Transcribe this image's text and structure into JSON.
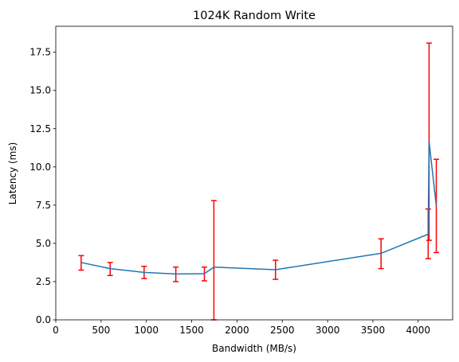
{
  "chart_data": {
    "type": "line",
    "title": "1024K  Random Write",
    "xlabel": "Bandwidth (MB/s)",
    "ylabel": "Latency (ms)",
    "xlim": [
      0,
      4380
    ],
    "ylim": [
      0,
      19.2
    ],
    "xticks": [
      0,
      500,
      1000,
      1500,
      2000,
      2500,
      3000,
      3500,
      4000
    ],
    "yticks": [
      0.0,
      2.5,
      5.0,
      7.5,
      10.0,
      12.5,
      15.0,
      17.5
    ],
    "xtick_labels": [
      "0",
      "500",
      "1000",
      "1500",
      "2000",
      "2500",
      "3000",
      "3500",
      "4000"
    ],
    "ytick_labels": [
      "0.0",
      "2.5",
      "5.0",
      "7.5",
      "10.0",
      "12.5",
      "15.0",
      "17.5"
    ],
    "grid": false,
    "line_color": "#1f77b4",
    "errorbar_color": "#ff0000",
    "series": [
      {
        "name": "latency",
        "points": [
          {
            "x": 280,
            "y": 3.75,
            "lo": 3.25,
            "hi": 4.2
          },
          {
            "x": 600,
            "y": 3.35,
            "lo": 2.9,
            "hi": 3.75
          },
          {
            "x": 975,
            "y": 3.1,
            "lo": 2.7,
            "hi": 3.5
          },
          {
            "x": 1325,
            "y": 3.0,
            "lo": 2.5,
            "hi": 3.45
          },
          {
            "x": 1640,
            "y": 3.02,
            "lo": 2.55,
            "hi": 3.45
          },
          {
            "x": 1745,
            "y": 3.45,
            "lo": 0.0,
            "hi": 7.8
          },
          {
            "x": 2425,
            "y": 3.28,
            "lo": 2.65,
            "hi": 3.9
          },
          {
            "x": 3590,
            "y": 4.35,
            "lo": 3.35,
            "hi": 5.3
          },
          {
            "x": 4110,
            "y": 5.6,
            "lo": 4.0,
            "hi": 7.25
          },
          {
            "x": 4120,
            "y": 11.65,
            "lo": 5.2,
            "hi": 18.1
          },
          {
            "x": 4200,
            "y": 7.45,
            "lo": 4.4,
            "hi": 10.5
          }
        ]
      }
    ]
  }
}
